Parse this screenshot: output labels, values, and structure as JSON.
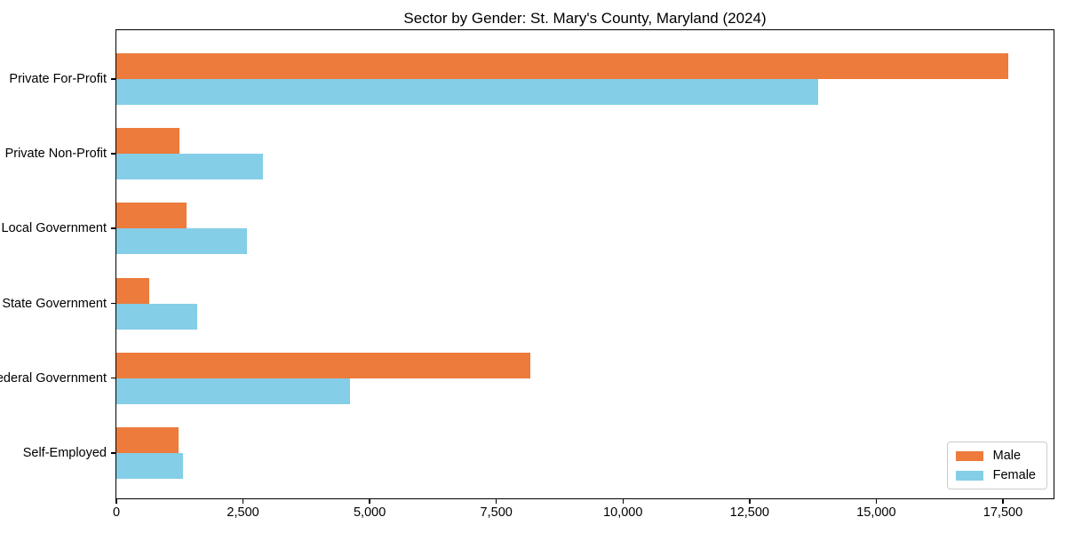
{
  "chart_data": {
    "type": "bar",
    "orientation": "horizontal",
    "title": "Sector by Gender: St. Mary's County, Maryland (2024)",
    "xlabel": "",
    "ylabel": "",
    "categories": [
      "Private For-Profit",
      "Private Non-Profit",
      "Local Government",
      "State Government",
      "Federal Government",
      "Self-Employed"
    ],
    "series": [
      {
        "name": "Male",
        "color": "#EC7B3C",
        "values": [
          17600,
          1250,
          1380,
          640,
          8170,
          1230
        ]
      },
      {
        "name": "Female",
        "color": "#85CEE8",
        "values": [
          13850,
          2890,
          2580,
          1590,
          4610,
          1320
        ]
      }
    ],
    "xlim": [
      0,
      18500
    ],
    "x_ticks": [
      0,
      2500,
      5000,
      7500,
      10000,
      12500,
      15000,
      17500
    ],
    "x_tick_labels": [
      "0",
      "2,500",
      "5,000",
      "7,500",
      "10,000",
      "12,500",
      "15,000",
      "17,500"
    ],
    "grid": false,
    "legend_position": "lower right"
  }
}
